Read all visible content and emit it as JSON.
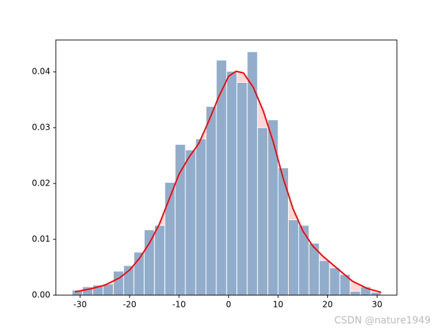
{
  "chart_data": {
    "type": "histogram",
    "bins": [
      -31.6,
      -29.52,
      -27.44,
      -25.36,
      -23.28,
      -21.2,
      -19.12,
      -17.04,
      -14.96,
      -12.88,
      -10.8,
      -8.72,
      -6.64,
      -4.56,
      -2.48,
      -0.4,
      1.68,
      3.76,
      5.84,
      7.92,
      10.0,
      12.08,
      14.16,
      16.24,
      18.32,
      20.4,
      22.48,
      24.56,
      26.64,
      28.72,
      30.8
    ],
    "counts": [
      0.0009,
      0.0015,
      0.0018,
      0.002,
      0.0043,
      0.0053,
      0.0077,
      0.0117,
      0.0125,
      0.0202,
      0.027,
      0.026,
      0.028,
      0.0338,
      0.0421,
      0.0401,
      0.0381,
      0.0436,
      0.03,
      0.0314,
      0.0228,
      0.0135,
      0.0125,
      0.0093,
      0.0062,
      0.0049,
      0.0037,
      0.0007,
      0.0015,
      0.0005
    ],
    "color": "#92adcb",
    "kde": {
      "color": "#ff0000",
      "fill": "#ffd6d6",
      "x": [
        -31,
        -28,
        -25,
        -22,
        -20,
        -18,
        -16,
        -14,
        -12,
        -10,
        -8,
        -6,
        -4,
        -2,
        0,
        1.5,
        3,
        5,
        7,
        9,
        11,
        13,
        15,
        17,
        19,
        21,
        23,
        25,
        28,
        30.8
      ],
      "y": [
        0.0006,
        0.0011,
        0.0018,
        0.0031,
        0.0045,
        0.0066,
        0.0093,
        0.0127,
        0.0172,
        0.0217,
        0.0247,
        0.0272,
        0.0312,
        0.0355,
        0.0392,
        0.0401,
        0.0398,
        0.0372,
        0.033,
        0.0275,
        0.021,
        0.0155,
        0.0115,
        0.0088,
        0.007,
        0.0055,
        0.004,
        0.0025,
        0.0012,
        0.0005
      ]
    },
    "xlim": [
      -34.9,
      34.0
    ],
    "ylim": [
      0,
      0.0457
    ],
    "xticks": [
      -30,
      -20,
      -10,
      0,
      10,
      20,
      30
    ],
    "yticks": [
      {
        "value": 0,
        "label": "0.00"
      },
      0.01,
      0.02,
      0.03,
      0.04
    ],
    "watermark": "CSDN @nature1949"
  }
}
